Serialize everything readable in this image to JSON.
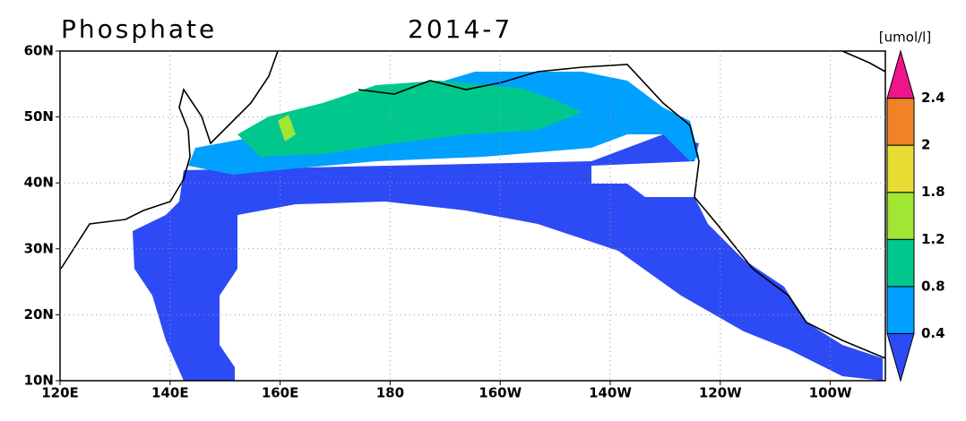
{
  "map": {
    "title": "Phosphate",
    "date": "2014-7",
    "unit": "[umol/l]",
    "lat_labels": [
      "60N",
      "50N",
      "40N",
      "30N",
      "20N",
      "10N"
    ],
    "lon_labels": [
      "120E",
      "140E",
      "160E",
      "180",
      "160W",
      "140W",
      "120W",
      "100W"
    ],
    "colorbar": {
      "levels": [
        0.4,
        0.8,
        1.2,
        1.8,
        2,
        2.4
      ],
      "colors": [
        "#2d4bf5",
        "#00a0ff",
        "#00c88c",
        "#a0e632",
        "#e6dc32",
        "#f08228",
        "#f0148c"
      ]
    }
  }
}
